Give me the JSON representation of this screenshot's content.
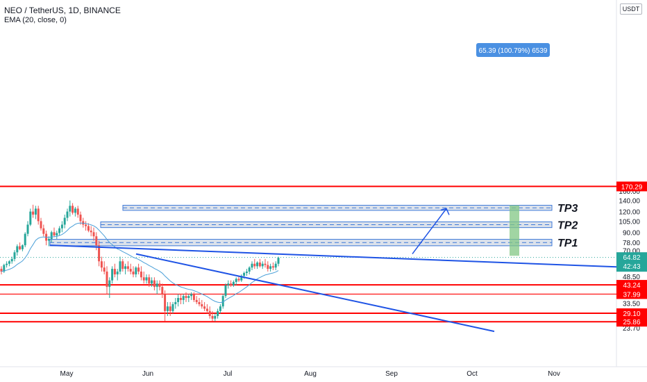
{
  "header": {
    "title": "NEO / TetherUS, 1D, BINANCE",
    "indicator": "EMA (20, close, 0)"
  },
  "axis": {
    "currency_badge": "USDT",
    "ticks": [
      "160.00",
      "140.00",
      "120.00",
      "105.00",
      "90.00",
      "78.00",
      "70.00",
      "54.50",
      "48.50",
      "33.50",
      "26.50",
      "23.70"
    ],
    "months": [
      "May",
      "Jun",
      "Jul",
      "Aug",
      "Sep",
      "Oct",
      "Nov"
    ],
    "price_label": "64.82",
    "countdown": "42:43"
  },
  "levels": [
    {
      "value": 170.29,
      "label": "170.29"
    },
    {
      "value": 43.24,
      "label": "43.24"
    },
    {
      "value": 37.99,
      "label": "37.99"
    },
    {
      "value": 29.1,
      "label": "29.10"
    },
    {
      "value": 25.86,
      "label": "25.86"
    }
  ],
  "targets": [
    {
      "label": "TP1",
      "low": 74.5,
      "high": 81.5
    },
    {
      "label": "TP2",
      "low": 96.0,
      "high": 104.0
    },
    {
      "label": "TP3",
      "low": 122.0,
      "high": 131.0
    }
  ],
  "measure": {
    "label": "65.39 (100.79%) 6539"
  },
  "colors": {
    "up": "#26a69a",
    "down": "#ef5350",
    "level": "#ff0000",
    "trendline": "#1e53e5",
    "ema": "#4a9fd8",
    "zone_fill": "#d6dde8",
    "zone_border": "#3c78d8",
    "measure_fill": "#81c784",
    "badge": "#4a90e2"
  },
  "chart_data": {
    "type": "candlestick",
    "title": "NEO / TetherUS, 1D, BINANCE",
    "y_scale": "log",
    "ylim": [
      22.5,
      175
    ],
    "x_axis": [
      "Apr 10",
      "Nov 10"
    ],
    "series": [
      {
        "name": "EMA (20, close, 0)",
        "kind": "line"
      }
    ],
    "ohlc_daily_from_Apr10": [
      [
        54,
        56,
        50,
        52
      ],
      [
        52,
        58,
        51,
        57
      ],
      [
        57,
        60,
        55,
        58
      ],
      [
        58,
        61,
        56,
        60
      ],
      [
        60,
        64,
        58,
        62
      ],
      [
        62,
        70,
        60,
        68
      ],
      [
        68,
        76,
        65,
        74
      ],
      [
        74,
        78,
        70,
        71
      ],
      [
        71,
        76,
        69,
        75
      ],
      [
        75,
        90,
        73,
        88
      ],
      [
        88,
        105,
        85,
        100
      ],
      [
        100,
        125,
        98,
        120
      ],
      [
        120,
        132,
        110,
        115
      ],
      [
        115,
        130,
        108,
        125
      ],
      [
        125,
        130,
        100,
        105
      ],
      [
        105,
        110,
        92,
        95
      ],
      [
        95,
        100,
        85,
        88
      ],
      [
        88,
        92,
        75,
        80
      ],
      [
        80,
        85,
        74,
        82
      ],
      [
        82,
        92,
        78,
        90
      ],
      [
        90,
        96,
        84,
        86
      ],
      [
        86,
        92,
        82,
        89
      ],
      [
        89,
        98,
        86,
        95
      ],
      [
        95,
        105,
        90,
        100
      ],
      [
        100,
        115,
        95,
        110
      ],
      [
        110,
        125,
        105,
        120
      ],
      [
        120,
        140,
        112,
        130
      ],
      [
        130,
        135,
        115,
        118
      ],
      [
        118,
        128,
        112,
        125
      ],
      [
        125,
        130,
        110,
        115
      ],
      [
        115,
        120,
        100,
        105
      ],
      [
        105,
        110,
        96,
        100
      ],
      [
        100,
        105,
        92,
        98
      ],
      [
        98,
        102,
        90,
        92
      ],
      [
        92,
        98,
        85,
        90
      ],
      [
        90,
        96,
        80,
        85
      ],
      [
        85,
        90,
        70,
        75
      ],
      [
        75,
        80,
        56,
        60
      ],
      [
        60,
        64,
        52,
        55
      ],
      [
        55,
        60,
        50,
        52
      ],
      [
        52,
        56,
        38,
        42
      ],
      [
        42,
        48,
        36,
        46
      ],
      [
        46,
        56,
        44,
        54
      ],
      [
        54,
        58,
        48,
        50
      ],
      [
        50,
        54,
        46,
        52
      ],
      [
        52,
        64,
        50,
        60
      ],
      [
        60,
        62,
        52,
        54
      ],
      [
        54,
        58,
        50,
        56
      ],
      [
        56,
        60,
        52,
        54
      ],
      [
        54,
        58,
        50,
        52
      ],
      [
        52,
        56,
        48,
        50
      ],
      [
        50,
        56,
        48,
        55
      ],
      [
        55,
        58,
        50,
        52
      ],
      [
        52,
        56,
        46,
        48
      ],
      [
        48,
        52,
        44,
        46
      ],
      [
        46,
        50,
        44,
        48
      ],
      [
        48,
        50,
        42,
        44
      ],
      [
        44,
        48,
        42,
        46
      ],
      [
        46,
        48,
        40,
        42
      ],
      [
        42,
        46,
        38,
        44
      ],
      [
        44,
        46,
        40,
        42
      ],
      [
        42,
        44,
        36,
        38
      ],
      [
        38,
        40,
        26,
        30
      ],
      [
        30,
        34,
        28,
        32
      ],
      [
        32,
        34,
        28,
        30
      ],
      [
        30,
        34,
        29,
        33
      ],
      [
        33,
        36,
        31,
        34
      ],
      [
        34,
        38,
        32,
        36
      ],
      [
        36,
        38,
        33,
        35
      ],
      [
        35,
        38,
        33,
        37
      ],
      [
        37,
        39,
        34,
        36
      ],
      [
        36,
        38,
        34,
        37
      ],
      [
        37,
        39,
        35,
        38
      ],
      [
        38,
        39,
        34,
        35
      ],
      [
        35,
        37,
        33,
        34
      ],
      [
        34,
        36,
        32,
        33
      ],
      [
        33,
        35,
        31,
        32
      ],
      [
        32,
        34,
        30,
        31
      ],
      [
        31,
        33,
        29,
        30
      ],
      [
        30,
        32,
        27,
        28
      ],
      [
        28,
        30,
        26,
        27
      ],
      [
        27,
        29,
        26,
        28
      ],
      [
        28,
        31,
        27,
        30
      ],
      [
        30,
        33,
        29,
        32
      ],
      [
        32,
        38,
        31,
        37
      ],
      [
        37,
        44,
        36,
        43
      ],
      [
        43,
        46,
        41,
        44
      ],
      [
        44,
        46,
        42,
        43
      ],
      [
        43,
        46,
        42,
        45
      ],
      [
        45,
        48,
        43,
        47
      ],
      [
        47,
        49,
        45,
        46
      ],
      [
        46,
        50,
        45,
        49
      ],
      [
        49,
        52,
        47,
        51
      ],
      [
        51,
        54,
        49,
        52
      ],
      [
        52,
        56,
        50,
        55
      ],
      [
        55,
        60,
        53,
        58
      ],
      [
        58,
        62,
        54,
        56
      ],
      [
        56,
        60,
        54,
        59
      ],
      [
        59,
        62,
        55,
        56
      ],
      [
        56,
        60,
        54,
        58
      ],
      [
        58,
        62,
        55,
        57
      ],
      [
        57,
        60,
        52,
        54
      ],
      [
        54,
        58,
        52,
        56
      ],
      [
        56,
        59,
        53,
        55
      ],
      [
        55,
        60,
        53,
        58
      ],
      [
        58,
        64,
        56,
        63
      ]
    ],
    "annotations": [
      "TP1",
      "TP2",
      "TP3",
      "65.39 (100.79%) 6539"
    ]
  }
}
